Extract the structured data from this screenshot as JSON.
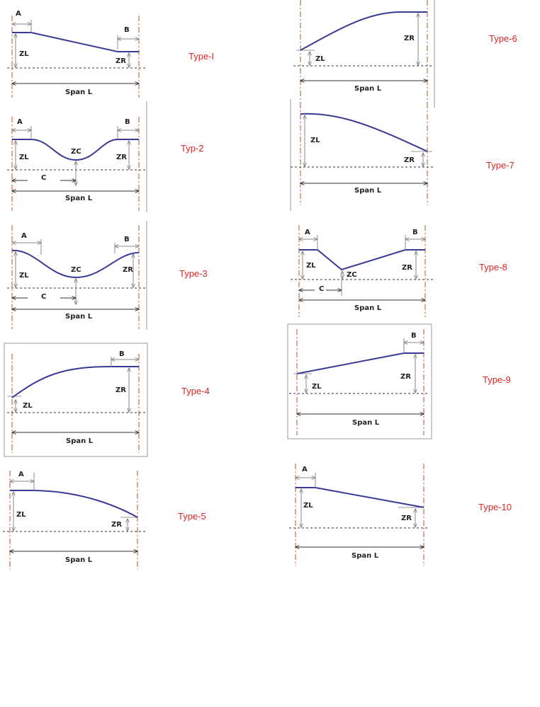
{
  "colors": {
    "profile": "#3a3a96",
    "support": "#c0704a",
    "title": "#e02424",
    "dimension": "#888888"
  },
  "diagrams": [
    {
      "title": "Type-I",
      "labels": {
        "a": "A",
        "b": "B",
        "zl": "ZL",
        "zr": "ZR",
        "span": "Span L"
      }
    },
    {
      "title": "Typ-2",
      "labels": {
        "a": "A",
        "b": "B",
        "zl": "ZL",
        "zc": "ZC",
        "zr": "ZR",
        "c": "C",
        "span": "Span L"
      }
    },
    {
      "title": "Type-3",
      "labels": {
        "a": "A",
        "b": "B",
        "zl": "ZL",
        "zc": "ZC",
        "zr": "ZR",
        "c": "C",
        "span": "Span L"
      }
    },
    {
      "title": "Type-4",
      "labels": {
        "b": "B",
        "zl": "ZL",
        "zr": "ZR",
        "span": "Span L"
      }
    },
    {
      "title": "Type-5",
      "labels": {
        "a": "A",
        "zl": "ZL",
        "zr": "ZR",
        "span": "Span L"
      }
    },
    {
      "title": "Type-6",
      "labels": {
        "zl": "ZL",
        "zr": "ZR",
        "span": "Span L"
      }
    },
    {
      "title": "Type-7",
      "labels": {
        "zl": "ZL",
        "zr": "ZR",
        "span": "Span L"
      }
    },
    {
      "title": "Type-8",
      "labels": {
        "a": "A",
        "b": "B",
        "zl": "ZL",
        "zc": "ZC",
        "zr": "ZR",
        "c": "C",
        "span": "Span L"
      }
    },
    {
      "title": "Type-9",
      "labels": {
        "b": "B",
        "zl": "ZL",
        "zr": "ZR",
        "span": "Span L"
      }
    },
    {
      "title": "Type-10",
      "labels": {
        "a": "A",
        "zl": "ZL",
        "zr": "ZR",
        "span": "Span L"
      }
    }
  ]
}
